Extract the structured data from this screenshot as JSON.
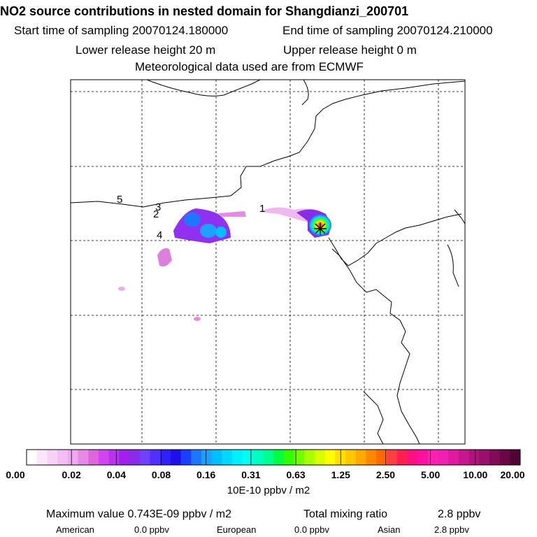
{
  "header": {
    "title": "NO2 source contributions in nested domain for Shangdianzi_200701",
    "start_time": "Start time of sampling 20070124.180000",
    "end_time": "End time of sampling 20070124.210000",
    "lower_height": "Lower release height   20 m",
    "upper_height": "Upper release height    0 m",
    "met_data": "Meteorological data used are from ECMWF"
  },
  "map": {
    "source_labels": [
      "1",
      "2",
      "3",
      "4",
      "5"
    ],
    "receptor_marker": "asterisk-star-icon"
  },
  "colorbar": {
    "tick_labels": [
      "0.00",
      "0.02",
      "0.04",
      "0.08",
      "0.16",
      "0.31",
      "0.63",
      "1.25",
      "2.50",
      "5.00",
      "10.00",
      "20.00"
    ],
    "units": "10E-10 ppbv / m2",
    "colors": [
      "#ffffff",
      "#fbe6fb",
      "#f7d2f7",
      "#f3bef3",
      "#eeaaee",
      "#e68ae6",
      "#dd66dd",
      "#d144ee",
      "#b933ee",
      "#a020f0",
      "#8a2be8",
      "#7040ff",
      "#5030ff",
      "#3020ff",
      "#2010e8",
      "#1a40ff",
      "#1e78ff",
      "#1ea0ff",
      "#00bfff",
      "#00d8ff",
      "#00f0ff",
      "#00ffee",
      "#00ffc0",
      "#00ff90",
      "#00ff40",
      "#30ff00",
      "#70ff00",
      "#a8ff00",
      "#d8ff00",
      "#ffff00",
      "#ffe000",
      "#ffc800",
      "#ffaa00",
      "#ff8800",
      "#ff6a00",
      "#ff4040",
      "#ff2050",
      "#ff1080",
      "#ff10a0",
      "#ff20b0",
      "#f020b0",
      "#e01aa0",
      "#c8168e",
      "#b0147c",
      "#98106a",
      "#800c58",
      "#680846",
      "#500434"
    ]
  },
  "footer": {
    "max_label": "Maximum value  0.743E-09 ppbv / m2",
    "total_label": "Total mixing ratio",
    "total_value": "2.8 ppbv",
    "american_label": "American",
    "american_value": "0.0 ppbv",
    "european_label": "European",
    "european_value": "0.0 ppbv",
    "asian_label": "Asian",
    "asian_value": "2.8 ppbv"
  }
}
